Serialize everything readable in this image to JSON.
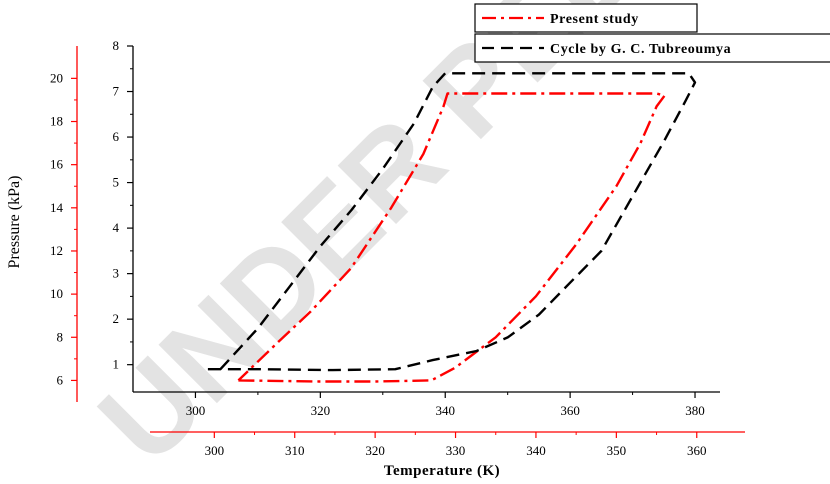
{
  "watermark": "UNDER PEER REVIEW",
  "chart_data": {
    "type": "line",
    "legend": {
      "placement": "top-right",
      "entries": [
        "Present study",
        "Cycle by G. C. Tubreoumya"
      ]
    },
    "grid": false,
    "axes": {
      "x_bottom": {
        "label": "Temperature (K)",
        "range": [
          292,
          366
        ],
        "ticks": [
          300,
          310,
          320,
          330,
          340,
          350,
          360
        ],
        "color": "#ff0000"
      },
      "x_top": {
        "label": "",
        "range": [
          290,
          384
        ],
        "ticks": [
          300,
          320,
          340,
          360,
          380
        ],
        "color": "#000000"
      },
      "y_inner": {
        "label": "",
        "range": [
          0.4,
          8
        ],
        "ticks": [
          1,
          2,
          3,
          4,
          5,
          6,
          7,
          8
        ],
        "color": "#000000"
      },
      "y_outer": {
        "label": "Pressure (kPa)",
        "range": [
          5,
          21.5
        ],
        "ticks": [
          6,
          8,
          10,
          12,
          14,
          16,
          18,
          20
        ],
        "color": "#ff0000"
      }
    },
    "series": [
      {
        "name": "Present study",
        "color": "#ff0000",
        "dash": "dash-dot",
        "x_axis": "x_bottom",
        "y_axis": "y_outer",
        "points": [
          [
            303,
            6.0
          ],
          [
            313,
            5.95
          ],
          [
            320,
            5.95
          ],
          [
            327,
            6.0
          ],
          [
            330,
            6.6
          ],
          [
            335,
            8.0
          ],
          [
            340,
            9.9
          ],
          [
            345,
            12.3
          ],
          [
            350,
            15.0
          ],
          [
            353,
            17.0
          ],
          [
            355,
            18.7
          ],
          [
            356,
            19.2
          ],
          [
            355,
            19.3
          ],
          [
            348,
            19.3
          ],
          [
            340,
            19.3
          ],
          [
            329,
            19.3
          ],
          [
            328.5,
            18.7
          ],
          [
            326,
            16.5
          ],
          [
            322,
            14.0
          ],
          [
            317,
            11.2
          ],
          [
            312,
            9.2
          ],
          [
            308,
            7.8
          ],
          [
            303,
            6.0
          ]
        ]
      },
      {
        "name": "Cycle by G. C. Tubreoumya",
        "color": "#000000",
        "dash": "dash",
        "x_axis": "x_top",
        "y_axis": "y_inner",
        "points": [
          [
            302,
            0.9
          ],
          [
            310,
            0.9
          ],
          [
            322,
            0.88
          ],
          [
            332,
            0.9
          ],
          [
            338,
            1.1
          ],
          [
            345,
            1.3
          ],
          [
            350,
            1.6
          ],
          [
            355,
            2.1
          ],
          [
            360,
            2.8
          ],
          [
            365,
            3.5
          ],
          [
            370,
            4.7
          ],
          [
            375,
            5.9
          ],
          [
            378.5,
            6.8
          ],
          [
            380,
            7.2
          ],
          [
            379,
            7.4
          ],
          [
            365,
            7.4
          ],
          [
            350,
            7.4
          ],
          [
            340,
            7.4
          ],
          [
            338,
            7.1
          ],
          [
            335,
            6.3
          ],
          [
            330,
            5.3
          ],
          [
            325,
            4.4
          ],
          [
            320,
            3.6
          ],
          [
            315,
            2.7
          ],
          [
            310,
            1.8
          ],
          [
            304,
            0.9
          ],
          [
            302,
            0.9
          ]
        ]
      }
    ]
  }
}
